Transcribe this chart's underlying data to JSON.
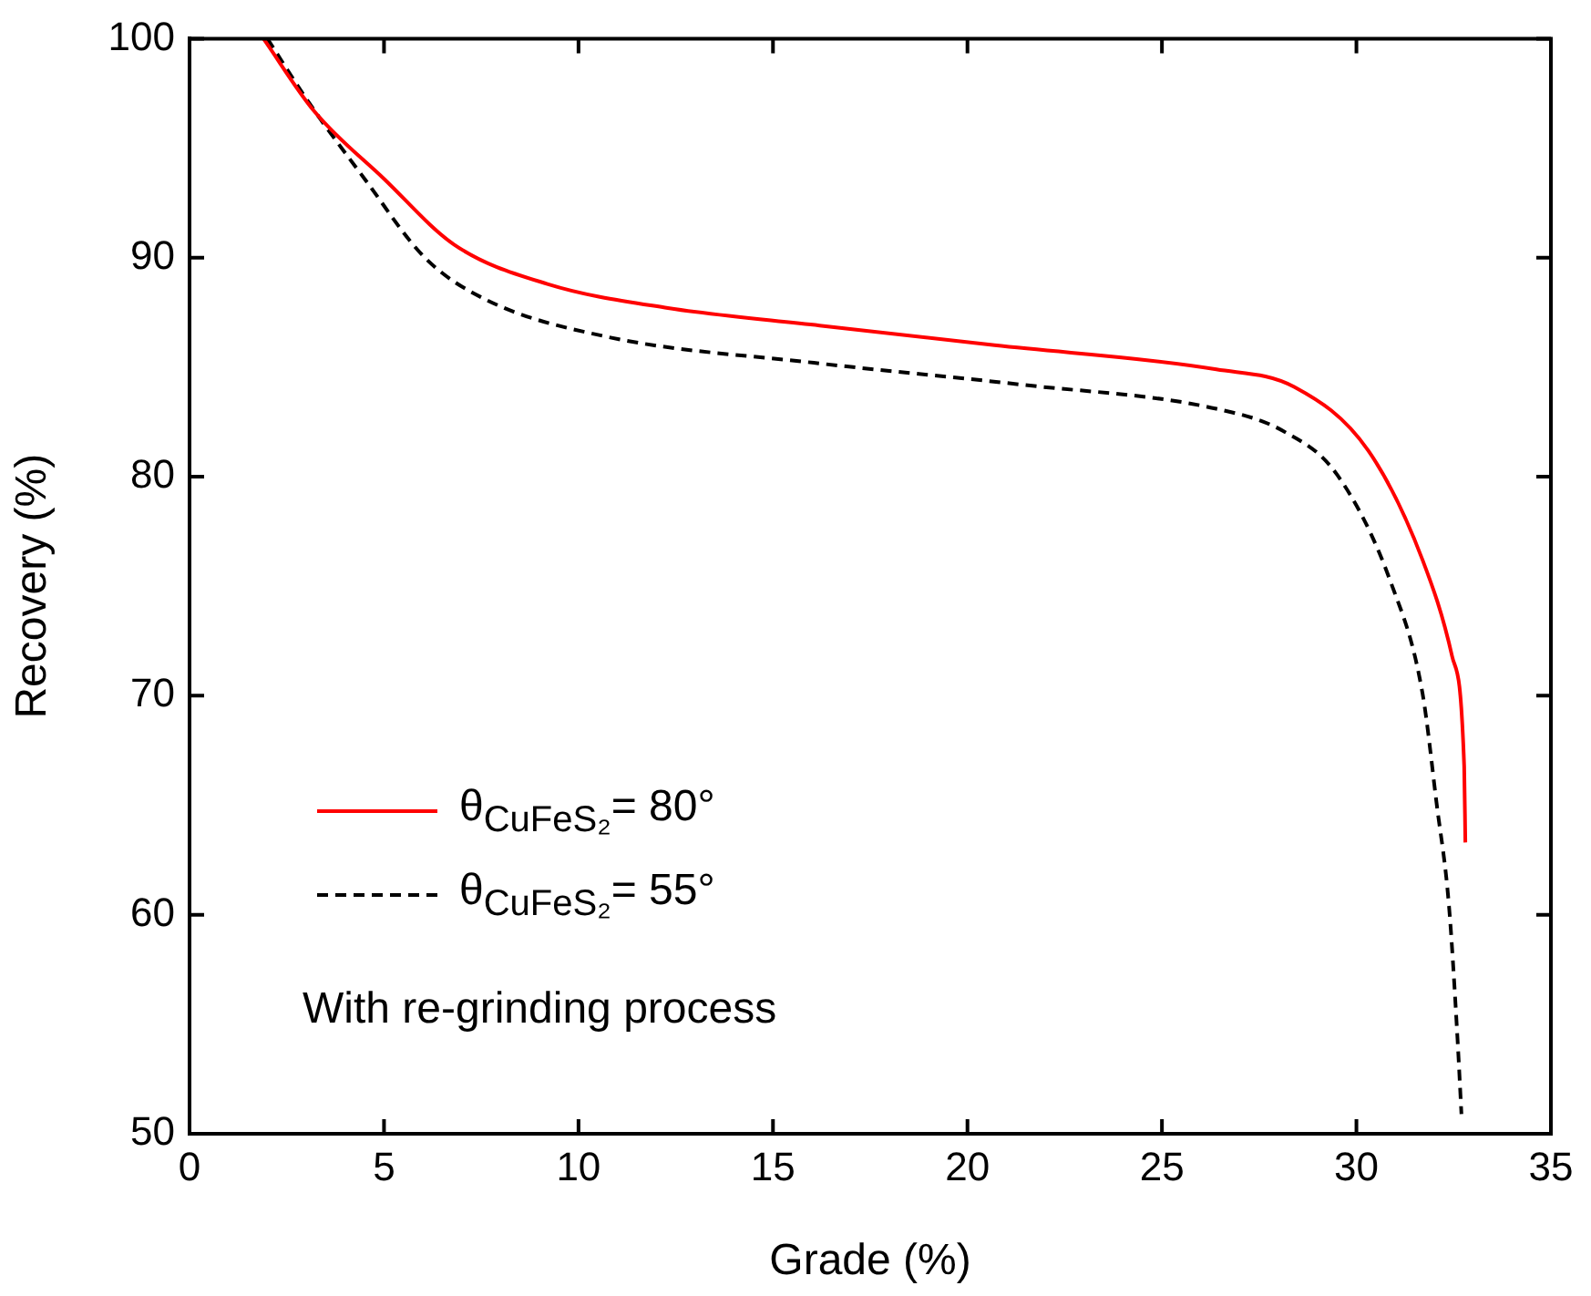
{
  "chart_data": {
    "type": "line",
    "xlabel": "Grade (%)",
    "ylabel": "Recovery (%)",
    "xlim": [
      0,
      35
    ],
    "xticks": [
      0,
      5,
      10,
      15,
      20,
      25,
      30,
      35
    ],
    "ylim": [
      50,
      100
    ],
    "yticks": [
      50,
      60,
      70,
      80,
      90,
      100
    ],
    "grid": false,
    "legend": "bottom left",
    "marker": "none",
    "annotations": [
      "With re-grinding process"
    ],
    "series": [
      {
        "name": "θ$_{CuFeS₂}$= 80°",
        "color": "#ff0000",
        "line_style": "solid",
        "x": [
          1.9,
          3.2,
          5.0,
          6.8,
          9.2,
          12.3,
          16.2,
          20.7,
          26.4,
          28.4,
          30.3,
          31.7,
          32.46,
          32.77,
          32.8
        ],
        "values": [
          100,
          96.7,
          93.6,
          90.6,
          88.8,
          87.7,
          86.9,
          86.0,
          84.9,
          84.1,
          81.2,
          76.2,
          71.8,
          66.8,
          63.3
        ]
      },
      {
        "name": "θ$_{CuFeS₂}$= 55°",
        "color": "#000000",
        "line_style": "dashed",
        "x": [
          2.0,
          3.1,
          4.5,
          6.05,
          7.6,
          10.7,
          16.05,
          21.4,
          26.4,
          28.1,
          29.5,
          30.9,
          31.7,
          32.06,
          32.38,
          32.6,
          32.7
        ],
        "values": [
          100,
          97.0,
          93.6,
          90.0,
          88.1,
          86.4,
          85.2,
          84.2,
          83.1,
          82.1,
          80.1,
          75.1,
          70.1,
          65.1,
          60.4,
          54.3,
          50.9
        ]
      }
    ]
  }
}
